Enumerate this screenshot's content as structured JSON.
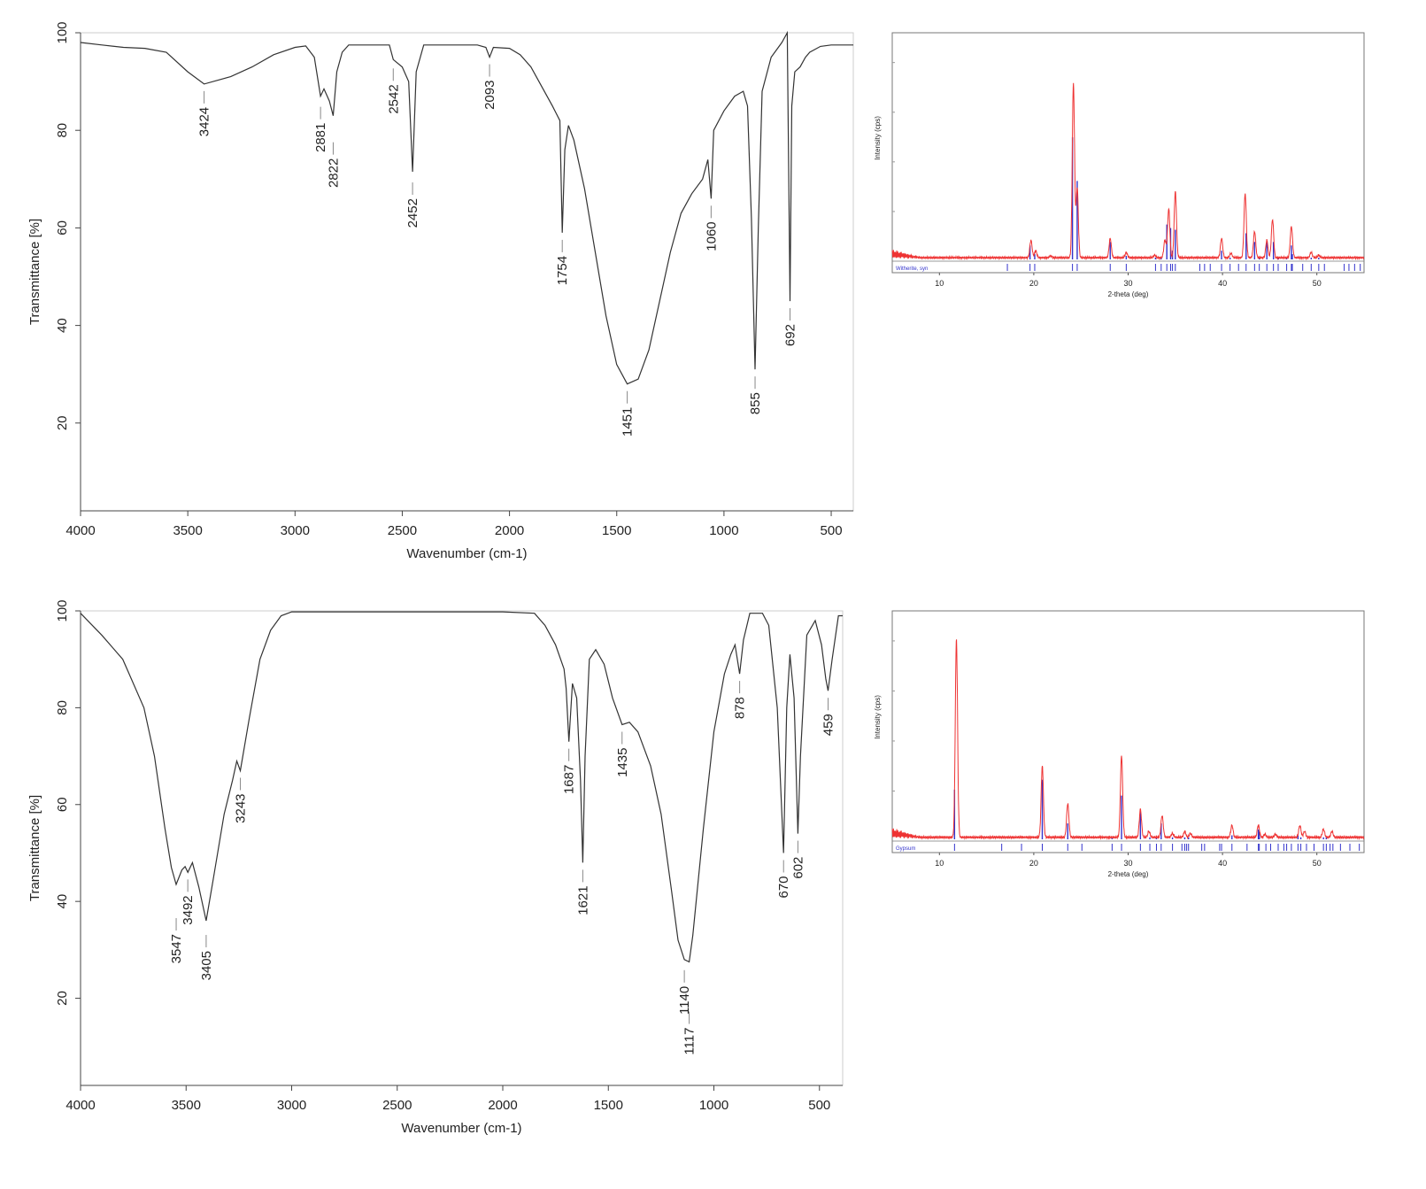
{
  "chart_data": [
    {
      "type": "line",
      "id": "ir-top",
      "xlabel": "Wavenumber (cm-1)",
      "ylabel": "Transmittance [%]",
      "xlim": [
        4000,
        397
      ],
      "ylim": [
        2,
        100
      ],
      "x_reversed": true,
      "xticks": [
        4000,
        3500,
        3000,
        2500,
        2000,
        1500,
        1000,
        500
      ],
      "yticks": [
        20,
        40,
        60,
        80,
        100
      ],
      "grid": false,
      "line_color": "#333333",
      "points": [
        [
          4000,
          98
        ],
        [
          3900,
          97.5
        ],
        [
          3800,
          97
        ],
        [
          3700,
          96.8
        ],
        [
          3600,
          96
        ],
        [
          3500,
          92
        ],
        [
          3424,
          89.5
        ],
        [
          3300,
          91
        ],
        [
          3200,
          93
        ],
        [
          3100,
          95.5
        ],
        [
          3000,
          97
        ],
        [
          2950,
          97.3
        ],
        [
          2910,
          95
        ],
        [
          2881,
          87
        ],
        [
          2865,
          88.5
        ],
        [
          2840,
          86
        ],
        [
          2822,
          83
        ],
        [
          2805,
          92
        ],
        [
          2780,
          96
        ],
        [
          2750,
          97.5
        ],
        [
          2560,
          97.5
        ],
        [
          2542,
          94.5
        ],
        [
          2500,
          93
        ],
        [
          2470,
          90
        ],
        [
          2452,
          71.5
        ],
        [
          2435,
          92
        ],
        [
          2400,
          97.5
        ],
        [
          2150,
          97.5
        ],
        [
          2110,
          97
        ],
        [
          2093,
          95
        ],
        [
          2075,
          97
        ],
        [
          2000,
          96.8
        ],
        [
          1950,
          95.5
        ],
        [
          1900,
          93
        ],
        [
          1850,
          89
        ],
        [
          1800,
          85
        ],
        [
          1765,
          82
        ],
        [
          1754,
          59
        ],
        [
          1742,
          76
        ],
        [
          1725,
          81
        ],
        [
          1700,
          78
        ],
        [
          1650,
          68
        ],
        [
          1600,
          55
        ],
        [
          1550,
          42
        ],
        [
          1500,
          32
        ],
        [
          1451,
          28
        ],
        [
          1400,
          29
        ],
        [
          1350,
          35
        ],
        [
          1300,
          45
        ],
        [
          1250,
          55
        ],
        [
          1200,
          63
        ],
        [
          1150,
          67
        ],
        [
          1100,
          70
        ],
        [
          1075,
          74
        ],
        [
          1060,
          66
        ],
        [
          1048,
          80
        ],
        [
          1000,
          84
        ],
        [
          950,
          87
        ],
        [
          910,
          88
        ],
        [
          890,
          85
        ],
        [
          872,
          62
        ],
        [
          855,
          31
        ],
        [
          840,
          60
        ],
        [
          822,
          88
        ],
        [
          780,
          95
        ],
        [
          730,
          98
        ],
        [
          705,
          100
        ],
        [
          692,
          45
        ],
        [
          684,
          85
        ],
        [
          670,
          92
        ],
        [
          645,
          93
        ],
        [
          620,
          95
        ],
        [
          600,
          96
        ],
        [
          550,
          97.2
        ],
        [
          500,
          97.5
        ],
        [
          397,
          97.5
        ]
      ],
      "peak_labels": [
        "3424",
        "2881",
        "2822",
        "2542",
        "2452",
        "2093",
        "1754",
        "1451",
        "1060",
        "855",
        "692"
      ]
    },
    {
      "type": "line",
      "id": "ir-bottom",
      "xlabel": "Wavenumber (cm-1)",
      "ylabel": "Transmittance [%]",
      "xlim": [
        4000,
        390
      ],
      "ylim": [
        2,
        100
      ],
      "x_reversed": true,
      "xticks": [
        4000,
        3500,
        3000,
        2500,
        2000,
        1500,
        1000,
        500
      ],
      "yticks": [
        20,
        40,
        60,
        80,
        100
      ],
      "grid": false,
      "line_color": "#333333",
      "points": [
        [
          4000,
          99.5
        ],
        [
          3900,
          95
        ],
        [
          3800,
          90
        ],
        [
          3700,
          80
        ],
        [
          3650,
          70
        ],
        [
          3600,
          55
        ],
        [
          3570,
          47
        ],
        [
          3547,
          43.5
        ],
        [
          3520,
          46.5
        ],
        [
          3505,
          47.2
        ],
        [
          3492,
          46
        ],
        [
          3470,
          48
        ],
        [
          3440,
          43
        ],
        [
          3405,
          36
        ],
        [
          3370,
          45
        ],
        [
          3320,
          58
        ],
        [
          3280,
          65
        ],
        [
          3260,
          69
        ],
        [
          3243,
          67
        ],
        [
          3200,
          78
        ],
        [
          3150,
          90
        ],
        [
          3100,
          96
        ],
        [
          3050,
          99
        ],
        [
          3000,
          99.8
        ],
        [
          2000,
          99.8
        ],
        [
          1850,
          99.5
        ],
        [
          1800,
          97
        ],
        [
          1750,
          93
        ],
        [
          1710,
          88
        ],
        [
          1700,
          84
        ],
        [
          1687,
          73
        ],
        [
          1670,
          85
        ],
        [
          1650,
          82
        ],
        [
          1632,
          65
        ],
        [
          1621,
          48
        ],
        [
          1610,
          70
        ],
        [
          1590,
          90
        ],
        [
          1560,
          92
        ],
        [
          1520,
          89
        ],
        [
          1480,
          82
        ],
        [
          1435,
          76.5
        ],
        [
          1400,
          77
        ],
        [
          1360,
          75
        ],
        [
          1300,
          68
        ],
        [
          1250,
          58
        ],
        [
          1200,
          42
        ],
        [
          1170,
          32
        ],
        [
          1140,
          28
        ],
        [
          1117,
          27.5
        ],
        [
          1100,
          33
        ],
        [
          1050,
          55
        ],
        [
          1000,
          75
        ],
        [
          950,
          87
        ],
        [
          920,
          91
        ],
        [
          900,
          93
        ],
        [
          878,
          87
        ],
        [
          860,
          94
        ],
        [
          830,
          99.5
        ],
        [
          770,
          99.5
        ],
        [
          740,
          97
        ],
        [
          700,
          80
        ],
        [
          670,
          50
        ],
        [
          655,
          80
        ],
        [
          640,
          91
        ],
        [
          620,
          82
        ],
        [
          602,
          54
        ],
        [
          590,
          70
        ],
        [
          560,
          95
        ],
        [
          520,
          98
        ],
        [
          490,
          93
        ],
        [
          470,
          86
        ],
        [
          459,
          83.5
        ],
        [
          440,
          90
        ],
        [
          410,
          99
        ],
        [
          390,
          99
        ]
      ],
      "peak_labels": [
        "3547",
        "3492",
        "3405",
        "3243",
        "1687",
        "1621",
        "1435",
        "1140",
        "1117",
        "878",
        "670",
        "602",
        "459"
      ]
    },
    {
      "type": "line",
      "id": "xrd-top",
      "xlabel": "2-theta (deg)",
      "ylabel": "Intensity (cps)",
      "xlim": [
        5,
        55
      ],
      "ylim": [
        0,
        130
      ],
      "xticks": [
        10,
        20,
        30,
        40,
        50
      ],
      "grid": false,
      "phase_label": "Witherite, syn",
      "measured_color": "#ee3333",
      "reference_color": "#3333cc",
      "peaks": [
        [
          19.7,
          10
        ],
        [
          20.2,
          4
        ],
        [
          21.8,
          1
        ],
        [
          24.2,
          100
        ],
        [
          24.6,
          40
        ],
        [
          28.1,
          11
        ],
        [
          29.8,
          3
        ],
        [
          32.8,
          1.5
        ],
        [
          33.9,
          10
        ],
        [
          34.3,
          28
        ],
        [
          35.0,
          38
        ],
        [
          39.9,
          11
        ],
        [
          40.9,
          2.5
        ],
        [
          42.4,
          37
        ],
        [
          43.4,
          15
        ],
        [
          44.7,
          10
        ],
        [
          45.3,
          22
        ],
        [
          47.3,
          18
        ],
        [
          49.4,
          3
        ],
        [
          50.2,
          1.5
        ]
      ],
      "reference_sticks": [
        [
          17.2,
          0
        ],
        [
          19.6,
          8
        ],
        [
          20.1,
          3
        ],
        [
          24.1,
          70
        ],
        [
          24.6,
          45
        ],
        [
          28.1,
          10
        ],
        [
          29.8,
          2
        ],
        [
          32.9,
          1
        ],
        [
          33.5,
          1
        ],
        [
          34.1,
          20
        ],
        [
          34.5,
          18
        ],
        [
          34.7,
          5
        ],
        [
          35.0,
          17
        ],
        [
          37.6,
          0
        ],
        [
          38.1,
          0
        ],
        [
          38.7,
          0
        ],
        [
          39.9,
          5
        ],
        [
          40.8,
          1
        ],
        [
          41.7,
          0
        ],
        [
          42.5,
          15
        ],
        [
          43.4,
          10
        ],
        [
          43.9,
          1
        ],
        [
          44.7,
          10
        ],
        [
          45.4,
          10
        ],
        [
          45.9,
          1
        ],
        [
          46.8,
          1
        ],
        [
          47.3,
          8
        ],
        [
          47.4,
          3
        ],
        [
          48.5,
          0
        ],
        [
          49.4,
          1
        ],
        [
          50.2,
          1
        ],
        [
          50.8,
          0
        ],
        [
          52.9,
          0
        ],
        [
          53.4,
          0
        ],
        [
          54.0,
          0
        ],
        [
          54.6,
          0
        ]
      ]
    },
    {
      "type": "line",
      "id": "xrd-bottom",
      "xlabel": "2-theta (deg)",
      "ylabel": "Intensity (cps)",
      "xlim": [
        5,
        55
      ],
      "ylim": [
        0,
        115
      ],
      "xticks": [
        10,
        20,
        30,
        40,
        50
      ],
      "grid": false,
      "phase_label": "Gypsum",
      "measured_color": "#ee3333",
      "reference_color": "#3333cc",
      "peaks": [
        [
          11.8,
          100
        ],
        [
          20.9,
          36
        ],
        [
          23.6,
          17
        ],
        [
          29.3,
          41
        ],
        [
          31.3,
          14
        ],
        [
          32.2,
          3
        ],
        [
          33.6,
          11
        ],
        [
          34.7,
          2
        ],
        [
          36.0,
          3
        ],
        [
          36.6,
          2
        ],
        [
          41.0,
          6
        ],
        [
          43.8,
          6
        ],
        [
          44.5,
          1.5
        ],
        [
          45.6,
          1.5
        ],
        [
          48.2,
          6
        ],
        [
          48.7,
          3
        ],
        [
          50.7,
          4
        ],
        [
          51.6,
          3
        ]
      ],
      "reference_sticks": [
        [
          11.6,
          25
        ],
        [
          16.6,
          0
        ],
        [
          18.7,
          0
        ],
        [
          20.9,
          30
        ],
        [
          23.6,
          8
        ],
        [
          25.1,
          0
        ],
        [
          28.3,
          1
        ],
        [
          29.3,
          22
        ],
        [
          31.3,
          14
        ],
        [
          32.3,
          1
        ],
        [
          33.0,
          1
        ],
        [
          33.5,
          8
        ],
        [
          34.7,
          1
        ],
        [
          35.7,
          0
        ],
        [
          36.0,
          1
        ],
        [
          36.2,
          0
        ],
        [
          36.4,
          1
        ],
        [
          37.8,
          0
        ],
        [
          38.1,
          0
        ],
        [
          39.7,
          0
        ],
        [
          39.9,
          0
        ],
        [
          41.0,
          2
        ],
        [
          42.6,
          0
        ],
        [
          43.8,
          5
        ],
        [
          43.9,
          4
        ],
        [
          44.6,
          0
        ],
        [
          45.1,
          0
        ],
        [
          45.9,
          0
        ],
        [
          46.5,
          0
        ],
        [
          46.8,
          0
        ],
        [
          47.3,
          0
        ],
        [
          48.0,
          2
        ],
        [
          48.3,
          1
        ],
        [
          48.9,
          0
        ],
        [
          49.7,
          0
        ],
        [
          50.7,
          1
        ],
        [
          51.0,
          1
        ],
        [
          51.4,
          0
        ],
        [
          51.7,
          0
        ],
        [
          52.5,
          0
        ],
        [
          53.5,
          0
        ],
        [
          54.5,
          0
        ]
      ]
    }
  ]
}
